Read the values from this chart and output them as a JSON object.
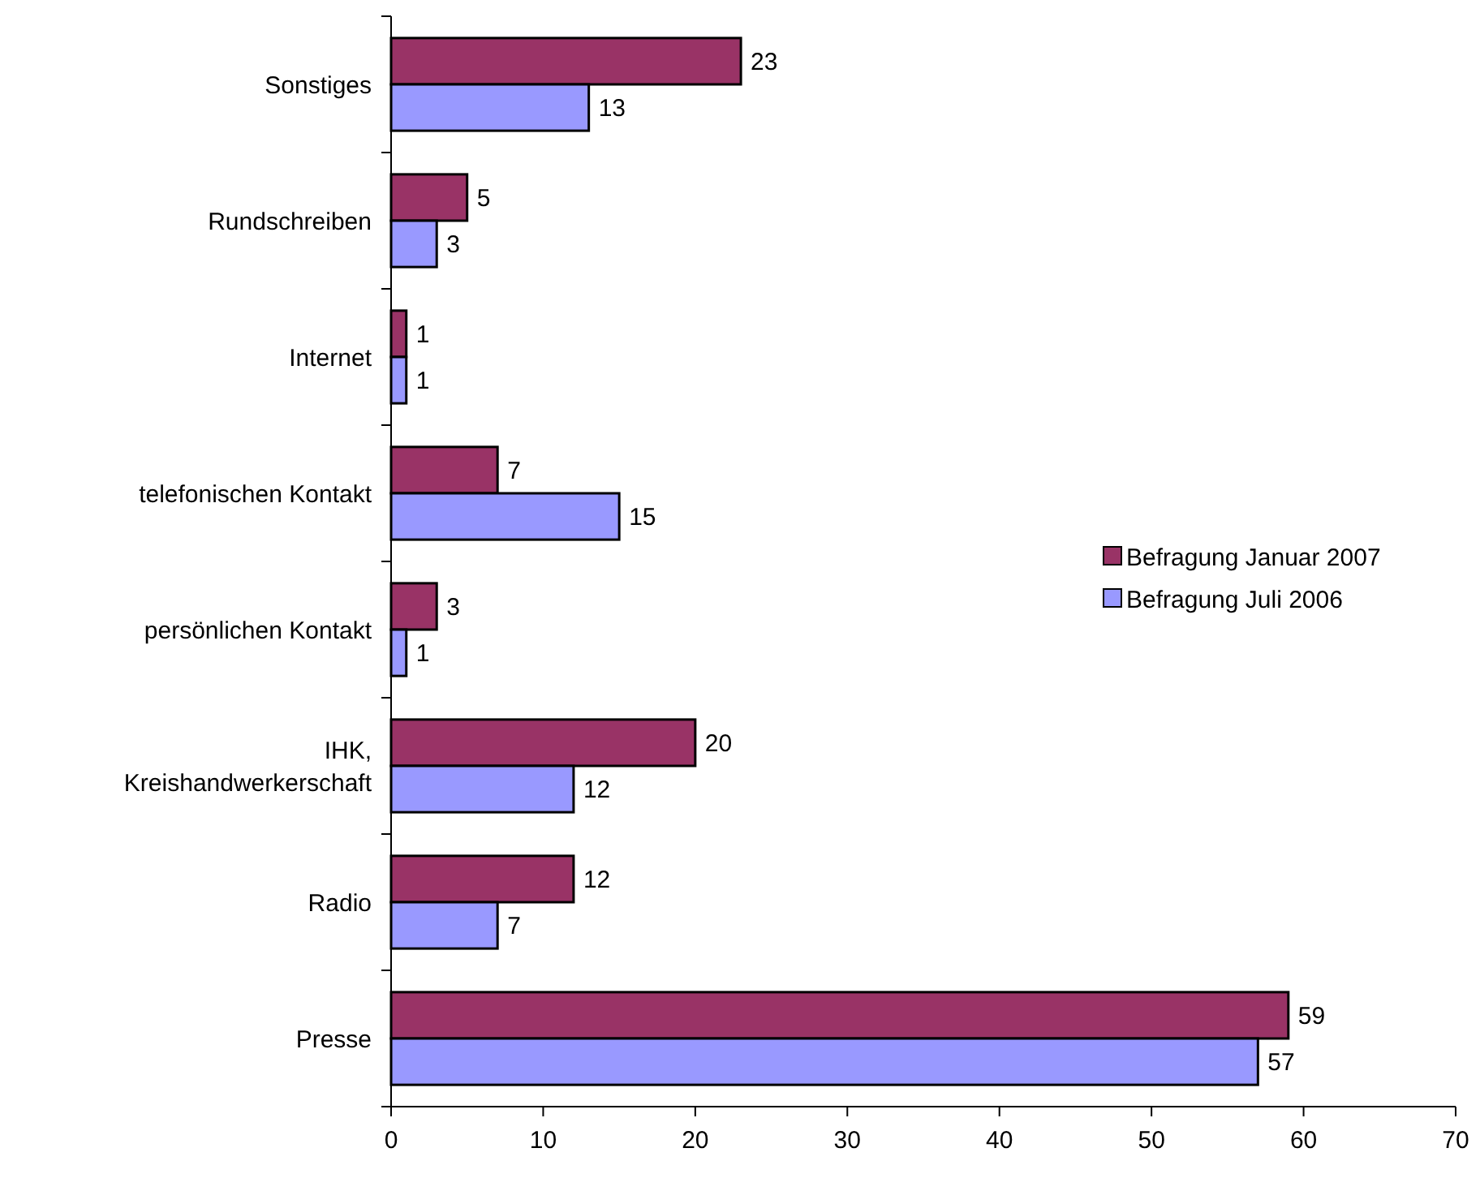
{
  "chart_data": {
    "type": "bar",
    "orientation": "horizontal",
    "categories": [
      "Sonstiges",
      "Rundschreiben",
      "Internet",
      "telefonischen Kontakt",
      "persönlichen Kontakt",
      "IHK,\nKreishandwerkerschaft",
      "Radio",
      "Presse"
    ],
    "series": [
      {
        "name": "Befragung Januar 2007",
        "color": "#993366",
        "values": [
          23,
          5,
          1,
          7,
          3,
          20,
          12,
          59
        ]
      },
      {
        "name": "Befragung Juli 2006",
        "color": "#9999ff",
        "values": [
          13,
          3,
          1,
          15,
          1,
          12,
          7,
          57
        ]
      }
    ],
    "xlim": [
      0,
      70
    ],
    "xticks": [
      0,
      10,
      20,
      30,
      40,
      50,
      60,
      70
    ],
    "data_labels": true,
    "legend": "right",
    "grid": false
  }
}
